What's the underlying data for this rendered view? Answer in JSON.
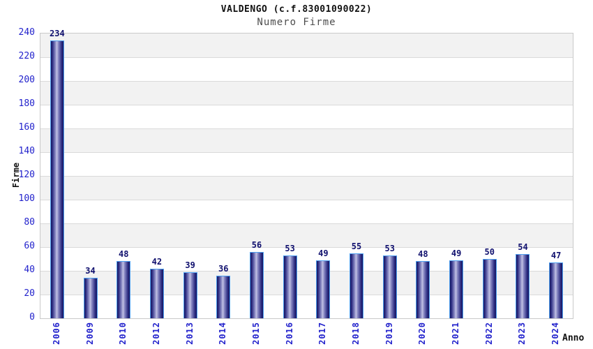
{
  "header": {
    "title": "VALDENGO (c.f.83001090022)",
    "subtitle": "Numero Firme"
  },
  "chart_data": {
    "type": "bar",
    "title": "VALDENGO (c.f.83001090022)",
    "subtitle": "Numero Firme",
    "xlabel": "Anno",
    "ylabel": "Firme",
    "categories": [
      "2006",
      "2009",
      "2010",
      "2012",
      "2013",
      "2014",
      "2015",
      "2016",
      "2017",
      "2018",
      "2019",
      "2020",
      "2021",
      "2022",
      "2023",
      "2024"
    ],
    "values": [
      234,
      34,
      48,
      42,
      39,
      36,
      56,
      53,
      49,
      55,
      53,
      48,
      49,
      50,
      54,
      47
    ],
    "ylim": [
      0,
      240
    ],
    "ytick_step": 20,
    "grid": true,
    "legend": "none",
    "band_fill": "alternating horizontal bands every 20 units",
    "colors": {
      "title": "#111111",
      "subtitle": "#4d4d4d",
      "tick": "#2222cc",
      "value": "#10106e",
      "band": "#f2f2f2",
      "grid": "#dadada",
      "axis": "#c9c9c9",
      "barborder": "#4d9ff0",
      "bar_dark": "#16165f",
      "bar_light": "#c2c2e4",
      "axislab": "#111111"
    }
  }
}
